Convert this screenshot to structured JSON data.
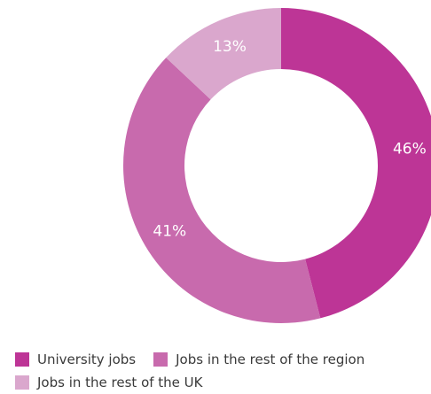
{
  "chart_data": {
    "type": "pie",
    "donut": true,
    "start_angle_deg": 0,
    "direction": "clockwise",
    "slices": [
      {
        "label": "University jobs",
        "value": 46,
        "display": "46%",
        "color": "#bd3596"
      },
      {
        "label": "Jobs in the rest of the region",
        "value": 41,
        "display": "41%",
        "color": "#c86aad"
      },
      {
        "label": "Jobs in the rest of the UK",
        "value": 13,
        "display": "13%",
        "color": "#daa7cd"
      }
    ],
    "legend": {
      "items": [
        {
          "label": "University jobs",
          "color": "#bd3596"
        },
        {
          "label": "Jobs in the rest of the region",
          "color": "#c86aad"
        },
        {
          "label": "Jobs in the rest of the UK",
          "color": "#daa7cd"
        }
      ],
      "position": "bottom-left"
    }
  }
}
